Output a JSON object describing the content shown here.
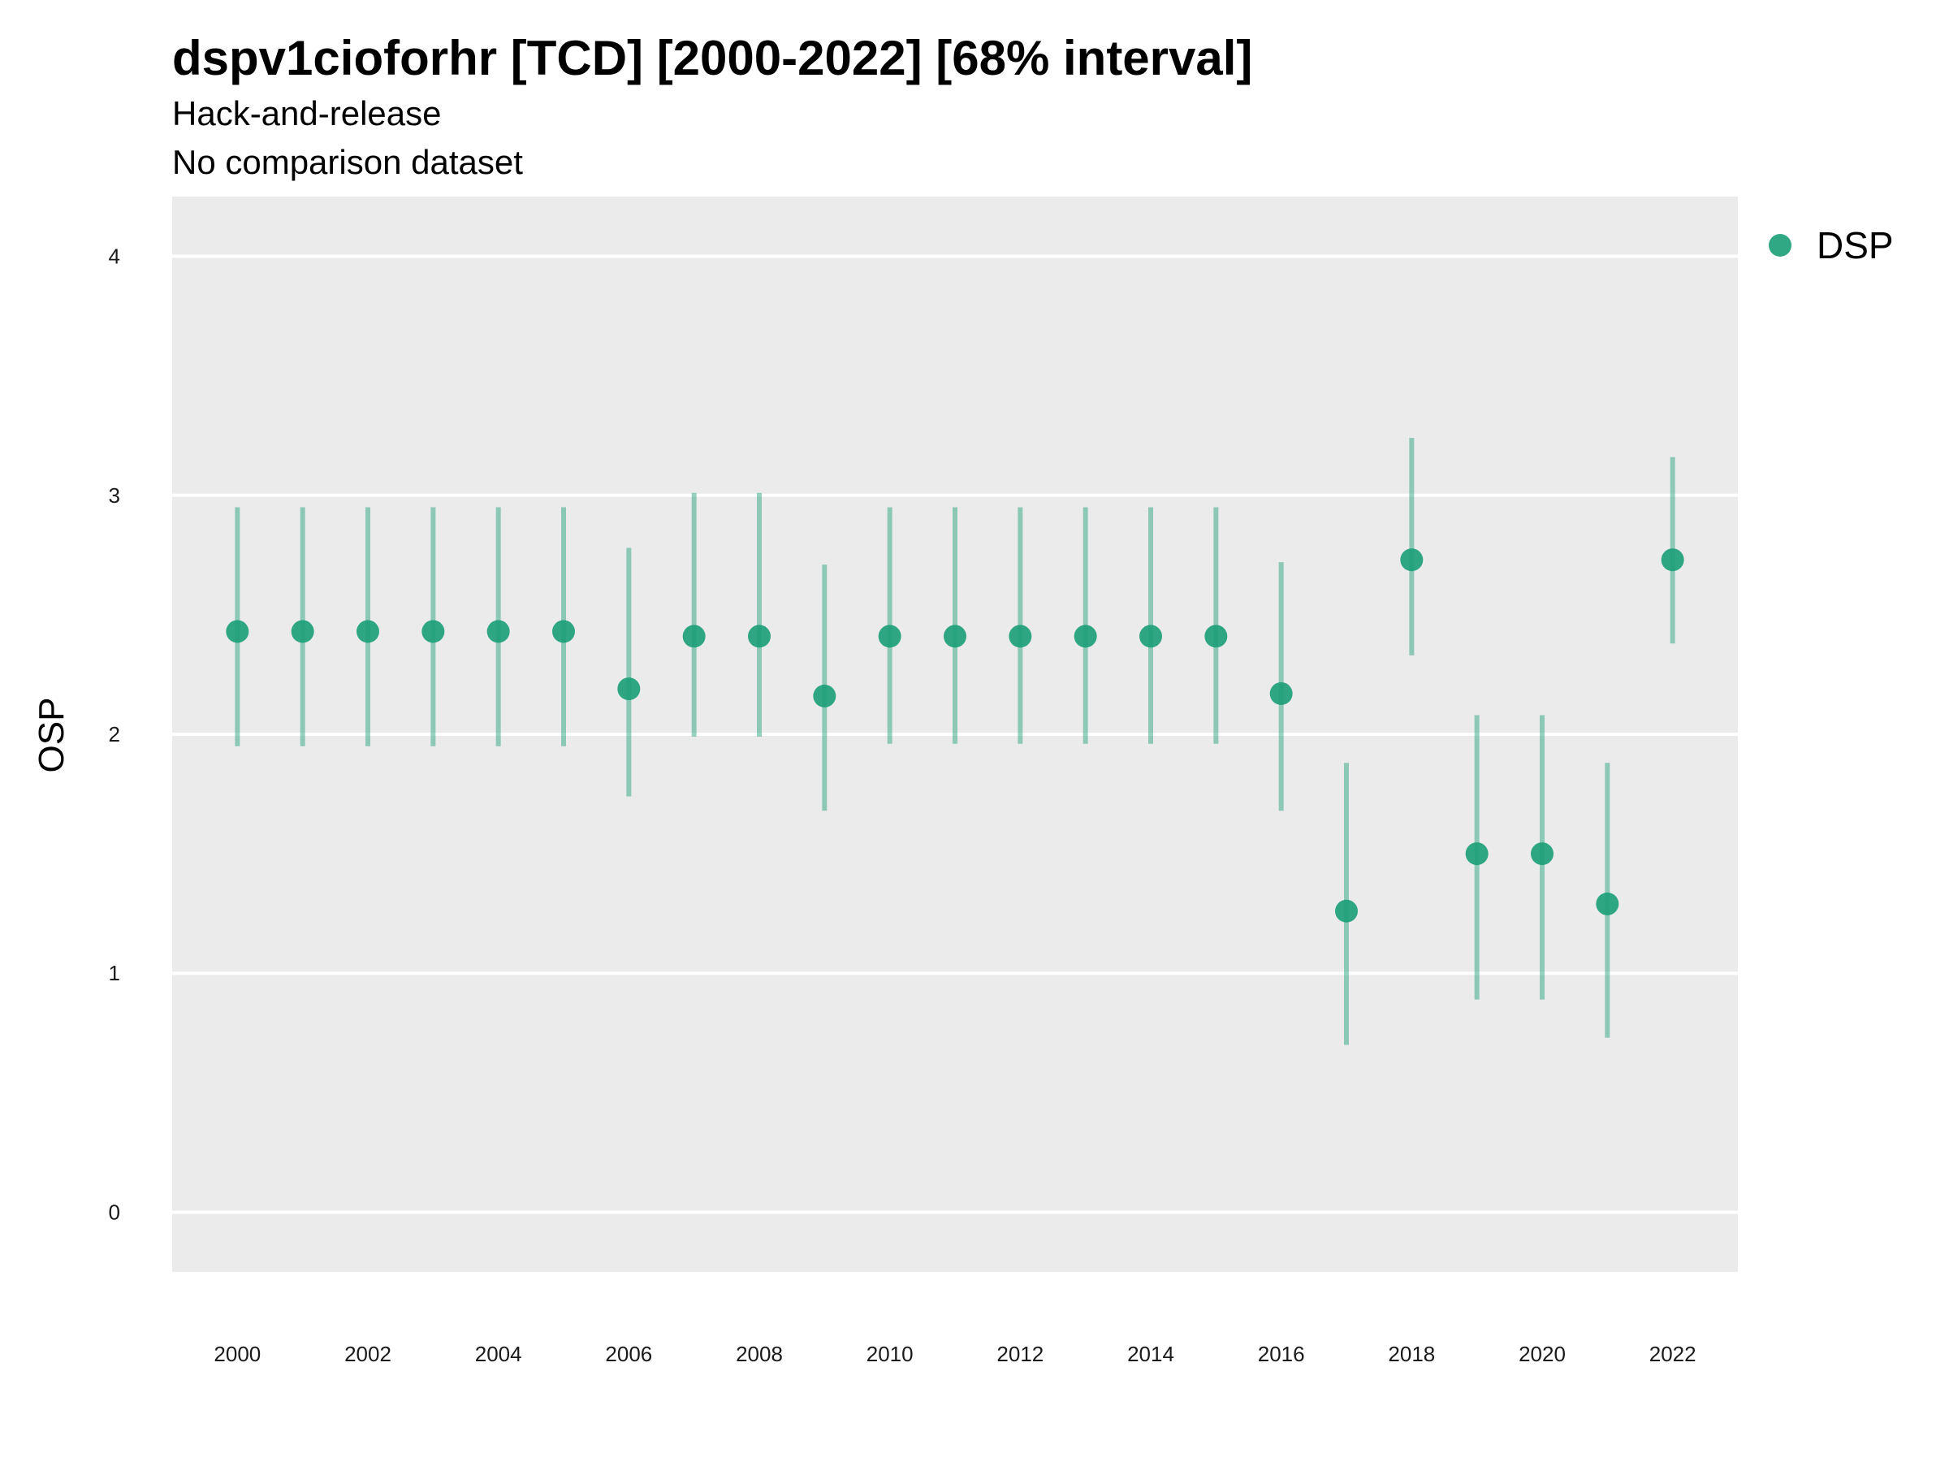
{
  "colors": {
    "panel": "#ebebeb",
    "grid": "#ffffff",
    "point": "#1b9e77",
    "interval": "#1b9e77"
  },
  "chart_data": {
    "type": "scatter",
    "title": "dspv1cioforhr [TCD] [2000-2022] [68% interval]",
    "subtitle_lines": [
      "Hack-and-release",
      "No comparison dataset"
    ],
    "xlabel": "",
    "ylabel": "OSP",
    "ylim": [
      -0.25,
      4.25
    ],
    "xlim": [
      1999,
      2023
    ],
    "yticks": [
      0,
      1,
      2,
      3,
      4
    ],
    "xticks": [
      2000,
      2002,
      2004,
      2006,
      2008,
      2010,
      2012,
      2014,
      2016,
      2018,
      2020,
      2022
    ],
    "grid": true,
    "legend_position": "right",
    "series": [
      {
        "name": "DSP",
        "x": [
          2000,
          2001,
          2002,
          2003,
          2004,
          2005,
          2006,
          2007,
          2008,
          2009,
          2010,
          2011,
          2012,
          2013,
          2014,
          2015,
          2016,
          2017,
          2018,
          2019,
          2020,
          2021,
          2022
        ],
        "y": [
          2.43,
          2.43,
          2.43,
          2.43,
          2.43,
          2.43,
          2.19,
          2.41,
          2.41,
          2.16,
          2.41,
          2.41,
          2.41,
          2.41,
          2.41,
          2.41,
          2.17,
          1.26,
          2.73,
          1.5,
          1.5,
          1.29,
          2.73
        ],
        "lower": [
          1.95,
          1.95,
          1.95,
          1.95,
          1.95,
          1.95,
          1.74,
          1.99,
          1.99,
          1.68,
          1.96,
          1.96,
          1.96,
          1.96,
          1.96,
          1.96,
          1.68,
          0.7,
          2.33,
          0.89,
          0.89,
          0.73,
          2.38
        ],
        "upper": [
          2.95,
          2.95,
          2.95,
          2.95,
          2.95,
          2.95,
          2.78,
          3.01,
          3.01,
          2.71,
          2.95,
          2.95,
          2.95,
          2.95,
          2.95,
          2.95,
          2.72,
          1.88,
          3.24,
          2.08,
          2.08,
          1.88,
          3.16
        ]
      }
    ]
  }
}
